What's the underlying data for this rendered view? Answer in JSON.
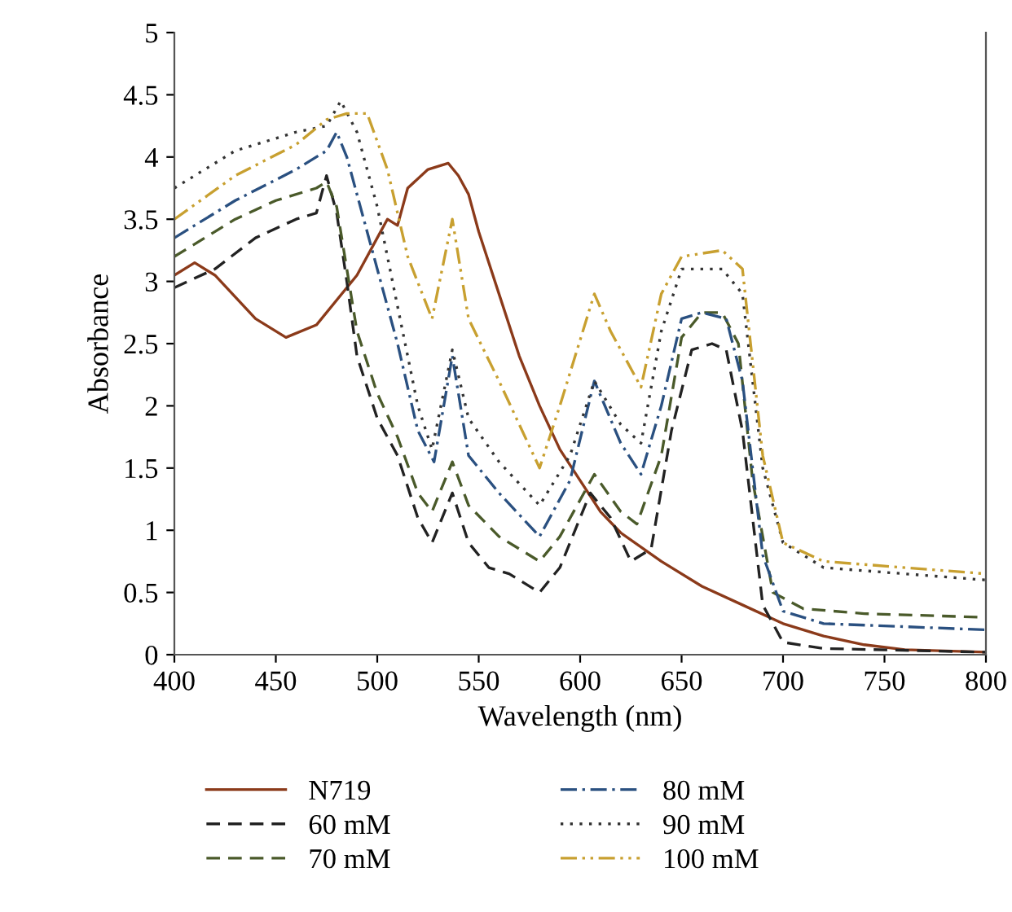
{
  "chart_data": {
    "type": "line",
    "xlabel": "Wavelength (nm)",
    "ylabel": "Absorbance",
    "xlim": [
      400,
      800
    ],
    "ylim": [
      0,
      5
    ],
    "xticks": [
      400,
      450,
      500,
      550,
      600,
      650,
      700,
      750,
      800
    ],
    "yticks": [
      0,
      0.5,
      1,
      1.5,
      2,
      2.5,
      3,
      3.5,
      4,
      4.5,
      5
    ],
    "grid": false,
    "legend": "bottom",
    "marker": "none",
    "series": [
      {
        "name": "N719",
        "color": "#8b3a1a",
        "line_style": "solid",
        "x": [
          400,
          410,
          420,
          440,
          455,
          470,
          490,
          500,
          505,
          510,
          515,
          525,
          535,
          540,
          545,
          550,
          560,
          570,
          580,
          590,
          600,
          610,
          620,
          640,
          660,
          680,
          700,
          720,
          740,
          760,
          800
        ],
        "values": [
          3.05,
          3.15,
          3.05,
          2.7,
          2.55,
          2.65,
          3.05,
          3.35,
          3.5,
          3.45,
          3.75,
          3.9,
          3.95,
          3.85,
          3.7,
          3.4,
          2.9,
          2.4,
          2.0,
          1.65,
          1.4,
          1.15,
          0.98,
          0.75,
          0.55,
          0.4,
          0.25,
          0.15,
          0.08,
          0.04,
          0.02
        ]
      },
      {
        "name": "60 mM",
        "color": "#222222",
        "line_style": "dashed",
        "x": [
          400,
          420,
          440,
          460,
          470,
          475,
          480,
          485,
          490,
          500,
          510,
          520,
          527,
          537,
          545,
          555,
          565,
          580,
          590,
          605,
          615,
          625,
          635,
          645,
          655,
          665,
          672,
          680,
          690,
          700,
          720,
          800
        ],
        "values": [
          2.95,
          3.1,
          3.35,
          3.5,
          3.55,
          3.85,
          3.55,
          3.0,
          2.4,
          1.9,
          1.6,
          1.1,
          0.9,
          1.3,
          0.9,
          0.7,
          0.65,
          0.5,
          0.7,
          1.3,
          1.1,
          0.75,
          0.85,
          1.8,
          2.45,
          2.5,
          2.45,
          1.8,
          0.4,
          0.1,
          0.05,
          0.02
        ]
      },
      {
        "name": "70 mM",
        "color": "#4a5a2a",
        "line_style": "dashed",
        "x": [
          400,
          430,
          450,
          470,
          475,
          480,
          490,
          500,
          510,
          520,
          527,
          537,
          545,
          560,
          580,
          590,
          607,
          620,
          628,
          640,
          650,
          660,
          670,
          678,
          685,
          695,
          710,
          740,
          800
        ],
        "values": [
          3.2,
          3.5,
          3.65,
          3.75,
          3.8,
          3.6,
          2.6,
          2.1,
          1.75,
          1.3,
          1.15,
          1.55,
          1.2,
          0.95,
          0.75,
          0.95,
          1.45,
          1.15,
          1.05,
          1.6,
          2.55,
          2.75,
          2.75,
          2.5,
          1.4,
          0.5,
          0.37,
          0.33,
          0.3
        ]
      },
      {
        "name": "80 mM",
        "color": "#2a5080",
        "line_style": "dashdot",
        "x": [
          400,
          430,
          460,
          475,
          480,
          485,
          495,
          510,
          520,
          528,
          537,
          545,
          560,
          580,
          595,
          607,
          620,
          630,
          640,
          650,
          660,
          672,
          680,
          690,
          700,
          720,
          800
        ],
        "values": [
          3.35,
          3.65,
          3.9,
          4.05,
          4.2,
          4.0,
          3.4,
          2.5,
          1.8,
          1.55,
          2.4,
          1.6,
          1.3,
          0.95,
          1.4,
          2.2,
          1.7,
          1.45,
          2.0,
          2.7,
          2.75,
          2.7,
          2.2,
          0.8,
          0.35,
          0.25,
          0.2
        ]
      },
      {
        "name": "90 mM",
        "color": "#333333",
        "line_style": "dotted",
        "x": [
          400,
          430,
          460,
          475,
          482,
          490,
          500,
          510,
          520,
          527,
          537,
          545,
          560,
          580,
          595,
          607,
          620,
          630,
          640,
          650,
          670,
          680,
          690,
          700,
          720,
          800
        ],
        "values": [
          3.75,
          4.05,
          4.2,
          4.25,
          4.45,
          4.2,
          3.6,
          2.8,
          2.0,
          1.65,
          2.45,
          1.9,
          1.55,
          1.2,
          1.6,
          2.2,
          1.85,
          1.7,
          2.6,
          3.1,
          3.1,
          2.9,
          1.5,
          0.9,
          0.7,
          0.6
        ]
      },
      {
        "name": "100 mM",
        "color": "#c8a030",
        "line_style": "dashdotdot",
        "x": [
          400,
          430,
          460,
          475,
          485,
          495,
          505,
          515,
          527,
          537,
          545,
          560,
          580,
          590,
          607,
          615,
          630,
          640,
          650,
          670,
          680,
          690,
          700,
          720,
          800
        ],
        "values": [
          3.5,
          3.85,
          4.1,
          4.3,
          4.35,
          4.35,
          3.9,
          3.2,
          2.7,
          3.5,
          2.7,
          2.2,
          1.5,
          2.0,
          2.9,
          2.6,
          2.15,
          2.9,
          3.2,
          3.25,
          3.1,
          1.6,
          0.9,
          0.75,
          0.65
        ]
      }
    ]
  }
}
